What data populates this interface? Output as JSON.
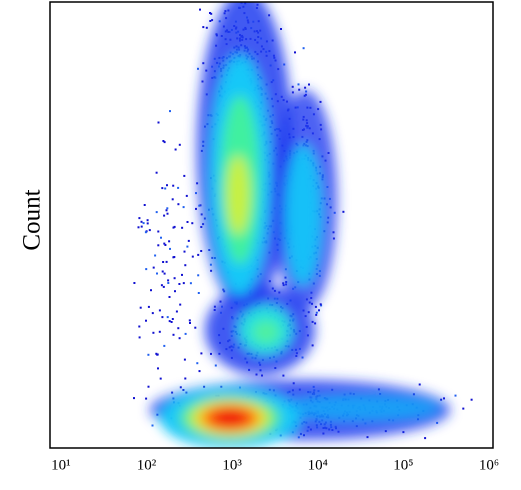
{
  "chart_data": {
    "type": "density",
    "y_label": "Count",
    "x_scale": "log",
    "xlim": [
      6.7,
      1000000
    ],
    "xticks": [
      {
        "value": 10,
        "label": "10¹"
      },
      {
        "value": 100,
        "label": "10²"
      },
      {
        "value": 1000,
        "label": "10³"
      },
      {
        "value": 10000,
        "label": "10⁴"
      },
      {
        "value": 100000,
        "label": "10⁵"
      },
      {
        "value": 1000000,
        "label": "10⁶"
      }
    ]
  }
}
